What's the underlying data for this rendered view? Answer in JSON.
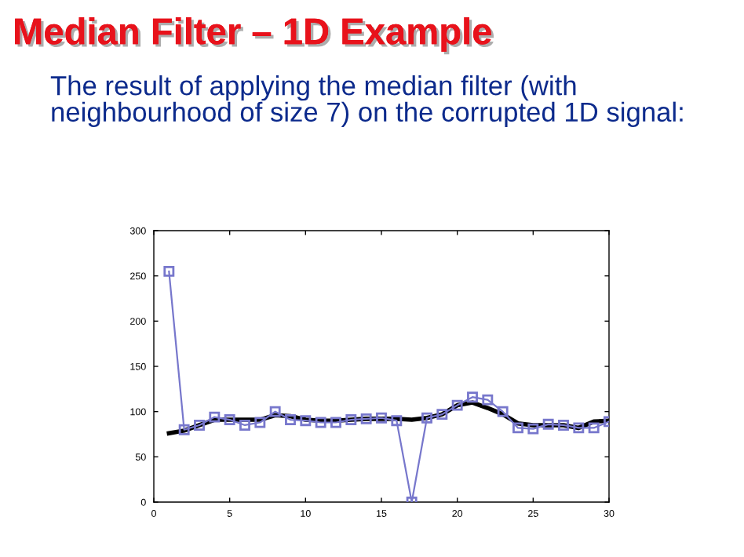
{
  "chart_data": {
    "type": "line",
    "title": "Median Filter – 1D Example",
    "subtitle": "The result of applying the median filter (with neighbourhood of size 7) on the corrupted 1D signal:",
    "x": [
      1,
      2,
      3,
      4,
      5,
      6,
      7,
      8,
      9,
      10,
      11,
      12,
      13,
      14,
      15,
      16,
      17,
      18,
      19,
      20,
      21,
      22,
      23,
      24,
      25,
      26,
      27,
      28,
      29,
      30
    ],
    "series": [
      {
        "color": "#7777cc",
        "marker": "square",
        "values": [
          255,
          80,
          85,
          94,
          91,
          85,
          88,
          100,
          91,
          90,
          88,
          88,
          91,
          92,
          93,
          90,
          0,
          93,
          97,
          107,
          116,
          113,
          100,
          82,
          81,
          86,
          85,
          82,
          82,
          89
        ]
      },
      {
        "color": "#000000",
        "marker": "none",
        "values": [
          76,
          79,
          85,
          91,
          91,
          91,
          91,
          96,
          95,
          91,
          90,
          90,
          91,
          92,
          92,
          92,
          91,
          93,
          97,
          107,
          110,
          104,
          97,
          87,
          85,
          85,
          85,
          82,
          89,
          90
        ]
      }
    ],
    "xlim": [
      0,
      30
    ],
    "ylim": [
      0,
      300
    ],
    "xticks": [
      0,
      5,
      10,
      15,
      20,
      25,
      30
    ],
    "yticks": [
      0,
      50,
      100,
      150,
      200,
      250,
      300
    ],
    "grid": false
  }
}
